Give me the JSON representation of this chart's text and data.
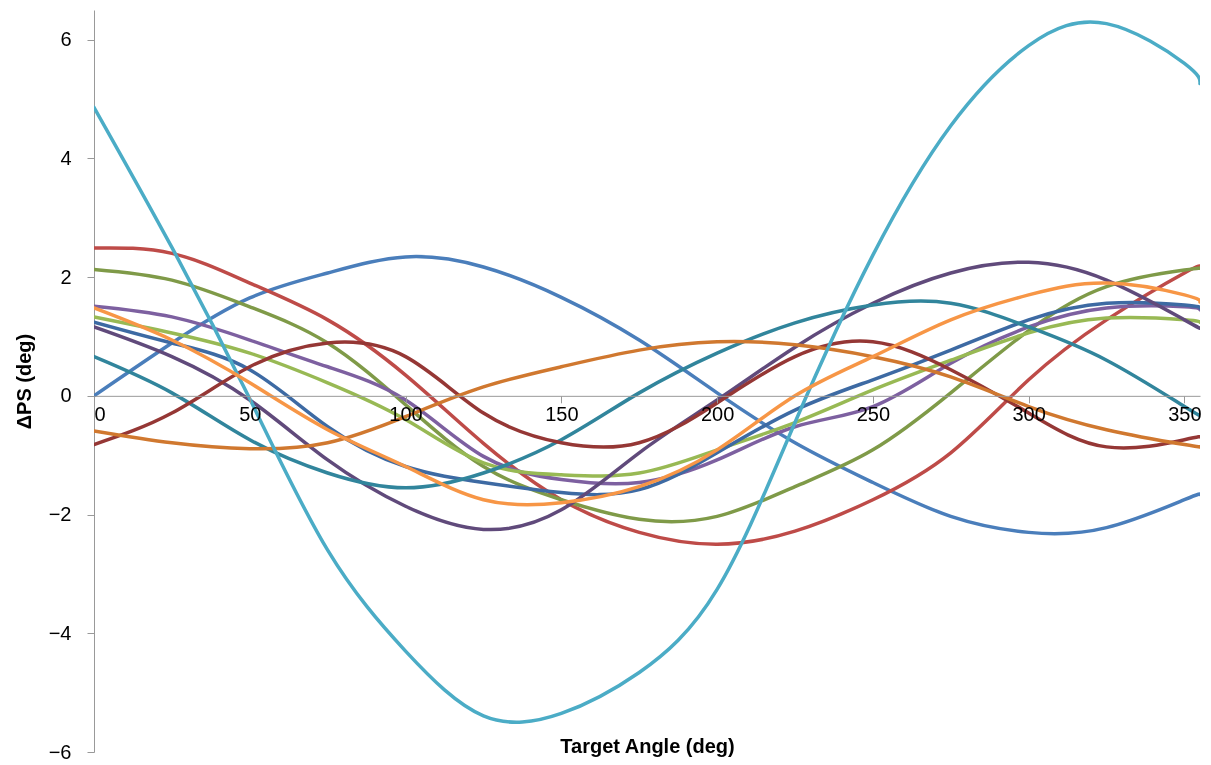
{
  "chart_data": {
    "type": "line",
    "xlabel": "Target Angle (deg)",
    "ylabel": "ΔPS (deg)",
    "x": [
      0,
      25,
      50,
      75,
      100,
      125,
      150,
      175,
      200,
      225,
      250,
      275,
      300,
      325,
      350,
      355
    ],
    "xlim": [
      0,
      355
    ],
    "xticks": [
      0,
      50,
      100,
      150,
      200,
      250,
      300,
      350
    ],
    "ylim": [
      -6,
      6.5
    ],
    "yticks": [
      -6,
      -4,
      -2,
      0,
      2,
      4,
      6
    ],
    "grid": false,
    "series": [
      {
        "color": "#4a7ebb",
        "values": [
          0,
          0.89,
          1.65,
          2.07,
          2.34,
          2.17,
          1.66,
          0.94,
          0.05,
          -0.79,
          -1.46,
          -2.03,
          -2.3,
          -2.22,
          -1.75,
          -1.66
        ]
      },
      {
        "color": "#be4b48",
        "values": [
          2.49,
          2.4,
          1.9,
          1.28,
          0.35,
          -0.8,
          -1.75,
          -2.3,
          -2.5,
          -2.28,
          -1.75,
          -0.96,
          0.27,
          1.28,
          2.07,
          2.17
        ]
      },
      {
        "color": "#7f9a48",
        "values": [
          2.13,
          1.95,
          1.5,
          0.89,
          -0.15,
          -1.19,
          -1.75,
          -2.08,
          -2.03,
          -1.53,
          -0.91,
          0.05,
          1.1,
          1.84,
          2.12,
          2.15
        ]
      },
      {
        "color": "#7d60a0",
        "values": [
          1.51,
          1.33,
          0.94,
          0.49,
          -0.07,
          -1.02,
          -1.41,
          -1.46,
          -1.08,
          -0.52,
          -0.18,
          0.55,
          1.16,
          1.48,
          1.5,
          1.45
        ]
      },
      {
        "color": "#98b954",
        "values": [
          1.33,
          1.06,
          0.72,
          0.22,
          -0.4,
          -1.13,
          -1.33,
          -1.3,
          -0.91,
          -0.45,
          0.1,
          0.6,
          1.06,
          1.31,
          1.28,
          1.24
        ]
      },
      {
        "color": "#3d6aa3",
        "values": [
          1.24,
          0.89,
          0.44,
          -0.52,
          -1.19,
          -1.46,
          -1.63,
          -1.58,
          -0.96,
          -0.24,
          0.27,
          0.77,
          1.28,
          1.56,
          1.53,
          1.48
        ]
      },
      {
        "color": "#604a7b",
        "values": [
          1.16,
          0.66,
          -0.07,
          -1.08,
          -1.86,
          -2.25,
          -1.92,
          -0.96,
          -0.07,
          0.82,
          1.56,
          2.07,
          2.25,
          1.95,
          1.28,
          1.14
        ]
      },
      {
        "color": "#31859c",
        "values": [
          0.66,
          0.05,
          -0.74,
          -1.3,
          -1.55,
          -1.3,
          -0.74,
          0.05,
          0.72,
          1.23,
          1.53,
          1.56,
          1.16,
          0.6,
          -0.18,
          -0.32
        ]
      },
      {
        "color": "#953735",
        "values": [
          -0.82,
          -0.29,
          0.49,
          0.89,
          0.66,
          -0.29,
          -0.79,
          -0.79,
          -0.12,
          0.66,
          0.91,
          0.44,
          -0.29,
          -0.86,
          -0.74,
          -0.69
        ]
      },
      {
        "color": "#d0782f",
        "values": [
          -0.59,
          -0.79,
          -0.89,
          -0.79,
          -0.35,
          0.15,
          0.49,
          0.77,
          0.91,
          0.86,
          0.66,
          0.32,
          -0.18,
          -0.57,
          -0.82,
          -0.86
        ]
      },
      {
        "color": "#4bacc6",
        "values": [
          4.86,
          2.5,
          -0.05,
          -2.6,
          -4.3,
          -5.39,
          -5.35,
          -4.66,
          -3.26,
          -0.45,
          2.37,
          4.55,
          5.9,
          6.27,
          5.6,
          5.26
        ]
      },
      {
        "color": "#f79646",
        "values": [
          1.48,
          0.94,
          0.22,
          -0.57,
          -1.19,
          -1.75,
          -1.8,
          -1.53,
          -0.91,
          0,
          0.66,
          1.28,
          1.7,
          1.9,
          1.7,
          1.58
        ]
      }
    ]
  }
}
